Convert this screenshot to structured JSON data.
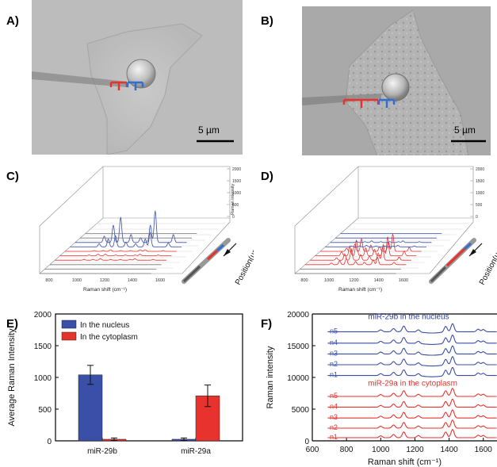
{
  "panels": {
    "a": {
      "label": "A)",
      "scalebar": "5 µm"
    },
    "b": {
      "label": "B)",
      "scalebar": "5 µm"
    },
    "c": {
      "label": "C)",
      "xlabel": "Raman shift (cm⁻¹)",
      "zlabel": "Raman intensity",
      "position_label": "Position(µm)",
      "xticks": [
        "800",
        "1000",
        "1200",
        "1400",
        "1600"
      ],
      "zticks": [
        "2000",
        "1500",
        "1000",
        "500",
        "0"
      ]
    },
    "d": {
      "label": "D)",
      "xlabel": "Raman shift (cm⁻¹)",
      "position_label": "Position(µm)",
      "xticks": [
        "800",
        "1000",
        "1200",
        "1400",
        "1600"
      ],
      "zticks": [
        "2000",
        "1500",
        "1000",
        "500",
        "0"
      ]
    },
    "e": {
      "label": "E)"
    },
    "f": {
      "label": "F)"
    }
  },
  "chart_data": [
    {
      "type": "bar",
      "panel": "E",
      "categories": [
        "miR-29b",
        "miR-29a"
      ],
      "series": [
        {
          "name": "In the nucleus",
          "values": [
            1040,
            25
          ],
          "errors": [
            150,
            20
          ],
          "color": "#3a4fa8"
        },
        {
          "name": "In the cytoplasm",
          "values": [
            25,
            710
          ],
          "errors": [
            20,
            170
          ],
          "color": "#e8322d"
        }
      ],
      "ylabel": "Average Raman Intensity",
      "ylim": [
        0,
        2000
      ],
      "yticks": [
        0,
        500,
        1000,
        1500,
        2000
      ],
      "legend": "top-left"
    },
    {
      "type": "line",
      "panel": "F",
      "xlabel": "Raman shift (cm⁻¹)",
      "ylabel": "Raman intensity",
      "xlim": [
        600,
        1680
      ],
      "ylim": [
        0,
        20000
      ],
      "xticks": [
        600,
        800,
        1000,
        1200,
        1400,
        1600
      ],
      "yticks": [
        0,
        5000,
        10000,
        15000,
        20000
      ],
      "annotations": [
        {
          "text": "miR-29b in the nucleus",
          "color": "#2f3f9e"
        },
        {
          "text": "miR-29a in the cytoplasm",
          "color": "#e8322d"
        }
      ],
      "series": [
        {
          "name": "n5",
          "group": "nucleus",
          "offset": 17200,
          "color": "#3a4fa8"
        },
        {
          "name": "n4",
          "group": "nucleus",
          "offset": 15400,
          "color": "#3a4fa8"
        },
        {
          "name": "n3",
          "group": "nucleus",
          "offset": 13700,
          "color": "#3a4fa8"
        },
        {
          "name": "n2",
          "group": "nucleus",
          "offset": 12000,
          "color": "#3a4fa8"
        },
        {
          "name": "n1",
          "group": "nucleus",
          "offset": 10300,
          "color": "#3a4fa8"
        },
        {
          "name": "n5",
          "group": "cytoplasm",
          "offset": 7000,
          "color": "#e8322d"
        },
        {
          "name": "n4",
          "group": "cytoplasm",
          "offset": 5300,
          "color": "#e8322d"
        },
        {
          "name": "n3",
          "group": "cytoplasm",
          "offset": 3600,
          "color": "#e8322d"
        },
        {
          "name": "n2",
          "group": "cytoplasm",
          "offset": 2000,
          "color": "#e8322d"
        },
        {
          "name": "n1",
          "group": "cytoplasm",
          "offset": 500,
          "color": "#e8322d"
        }
      ],
      "peaks": [
        1000,
        1075,
        1135,
        1220,
        1380,
        1420,
        1570,
        1600
      ]
    }
  ]
}
